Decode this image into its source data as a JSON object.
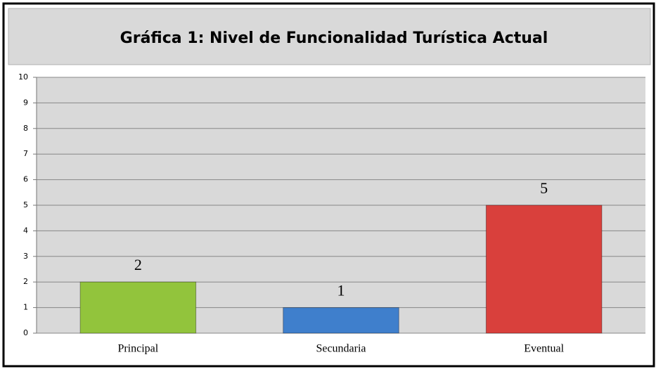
{
  "chart_data": {
    "type": "bar",
    "title": "Gráfica 1: Nivel de Funcionalidad Turística Actual",
    "categories": [
      "Principal",
      "Secundaria",
      "Eventual"
    ],
    "values": [
      2,
      1,
      5
    ],
    "colors": [
      "#92c43c",
      "#3f7fcc",
      "#d9403c"
    ],
    "ylim": [
      0,
      10
    ],
    "yticks": [
      0,
      1,
      2,
      3,
      4,
      5,
      6,
      7,
      8,
      9,
      10
    ],
    "grid": true
  }
}
